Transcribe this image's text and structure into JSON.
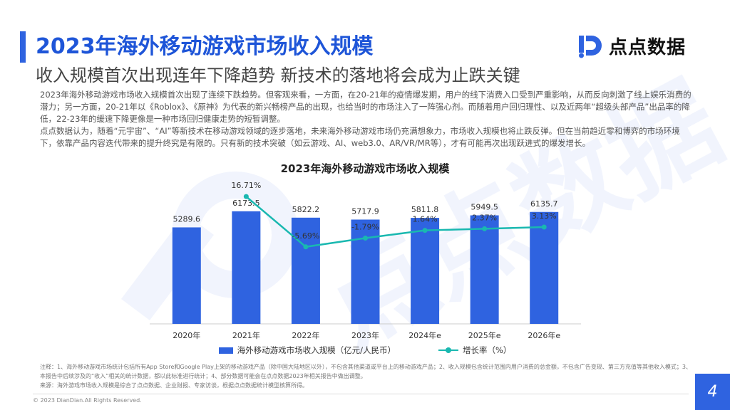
{
  "header": {
    "title": "2023年海外移动游戏市场收入规模",
    "subtitle": "收入规模首次出现连年下降趋势 新技术的落地将会成为止跌关键"
  },
  "logo": {
    "text": "点点数据"
  },
  "body": {
    "paragraph1": "2023年海外移动游戏市场收入规模首次出现了连续下跌趋势。但客观来看，一方面，在20-21年的疫情爆发期，用户的线下消费入口受到严重影响，从而反向刺激了线上娱乐消费的潜力；另一方面，20-21年以《Roblox》、《原神》为代表的新兴畅榜产品的出现，也给当时的市场注入了一阵强心剂。而随着用户回归理性、以及近两年“超级头部产品”出品率的降低，22-23年的缓速下降更像是一种市场回归健康走势的短暂调整。",
    "paragraph2": "点点数据认为，随着“元宇宙”、“AI”等新技术在移动游戏领域的逐步落地，未来海外移动游戏市场仍充满想象力，市场收入规模也将止跌反弹。但在当前趋近零和博弈的市场环境下，依靠产品内容迭代带来的提升终究是有限的。只有新的技术突破（如云游戏、AI、web3.0、AR/VR/MR等），才有可能再次出现跃进式的爆发增长。"
  },
  "chart_data": {
    "type": "bar",
    "title": "2023年海外移动游戏市场收入规模",
    "categories": [
      "2020年",
      "2021年",
      "2022年",
      "2023年",
      "2024年e",
      "2025年e",
      "2026年e"
    ],
    "series": [
      {
        "name": "海外移动游戏市场收入规模（亿元/人民币）",
        "type": "bar",
        "values": [
          5289.6,
          6173.5,
          5822.2,
          5717.9,
          5811.8,
          5949.5,
          6135.7
        ],
        "labels": [
          "5289.6",
          "6173.5",
          "5822.2",
          "5717.9",
          "5811.8",
          "5949.5",
          "6135.7"
        ],
        "color": "#2f63e0"
      },
      {
        "name": "增长率（%）",
        "type": "line",
        "values": [
          null,
          16.71,
          -5.69,
          -1.79,
          1.64,
          2.37,
          3.13
        ],
        "labels": [
          "",
          "16.71%",
          "-5.69%",
          "-1.79%",
          "1.64%",
          "2.37%",
          "3.13%"
        ],
        "color": "#19b8b0"
      }
    ],
    "ylim": [
      0,
      8000
    ],
    "y2lim": [
      -40,
      25
    ],
    "grid": false,
    "legend": "bottom"
  },
  "notes": {
    "note": "注释：1、海外移动游戏市场统计包括所有App Store和Google Play上架的移动游戏产品（除中国大陆地区以外），不包含其他渠道或平台上的移动游戏产品；2、收入规模包含统计范围内用户消费的总金额，不包含广告变现、第三方充值等其他收入模式；3、本报告中后续涉及的“收入”相关的统计数据，都以此标准进行统计；4、部分数据可能会在点点数据2023年相关报告中做出调整。",
    "source": "来源：海外游戏市场收入规模是综合了点点数据、企业财报、专家访谈，根据点点数据统计模型核算所得。"
  },
  "footer": {
    "copyright": "© 2023 DianDian.All Rights Reserved.",
    "page": "4"
  },
  "colors": {
    "accent": "#2f63e0",
    "line": "#19b8b0",
    "title": "#1e55d8"
  }
}
